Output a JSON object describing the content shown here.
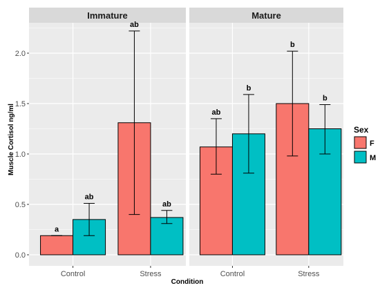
{
  "colors": {
    "F": "#f8766d",
    "M": "#00bfc4",
    "panel_bg": "#ebebeb",
    "strip_bg": "#d9d9d9",
    "grid": "#ffffff"
  },
  "chart_data": {
    "type": "bar",
    "ylabel": "Muscle Cortisol ng/ml",
    "xlabel": "Condition",
    "ylim": [
      0,
      2.4
    ],
    "yticks": [
      0.0,
      0.5,
      1.0,
      1.5,
      2.0
    ],
    "ytick_labels": [
      "0.0",
      "0.5",
      "1.0",
      "1.5",
      "2.0"
    ],
    "categories": [
      "Control",
      "Stress"
    ],
    "legend": {
      "title": "Sex",
      "placement": "right",
      "entries": [
        "F",
        "M"
      ]
    },
    "panels": [
      {
        "title": "Immature",
        "series": [
          {
            "name": "F",
            "values": [
              0.19,
              1.31
            ],
            "error_low": [
              0.19,
              0.4
            ],
            "error_high": [
              0.19,
              2.22
            ],
            "labels": [
              "a",
              "ab"
            ]
          },
          {
            "name": "M",
            "values": [
              0.35,
              0.37
            ],
            "error_low": [
              0.19,
              0.31
            ],
            "error_high": [
              0.51,
              0.44
            ],
            "labels": [
              "ab",
              "ab"
            ]
          }
        ]
      },
      {
        "title": "Mature",
        "series": [
          {
            "name": "F",
            "values": [
              1.07,
              1.5
            ],
            "error_low": [
              0.8,
              0.98
            ],
            "error_high": [
              1.35,
              2.02
            ],
            "labels": [
              "ab",
              "b"
            ]
          },
          {
            "name": "M",
            "values": [
              1.2,
              1.25
            ],
            "error_low": [
              0.81,
              1.0
            ],
            "error_high": [
              1.59,
              1.49
            ],
            "labels": [
              "b",
              "b"
            ]
          }
        ]
      }
    ]
  }
}
